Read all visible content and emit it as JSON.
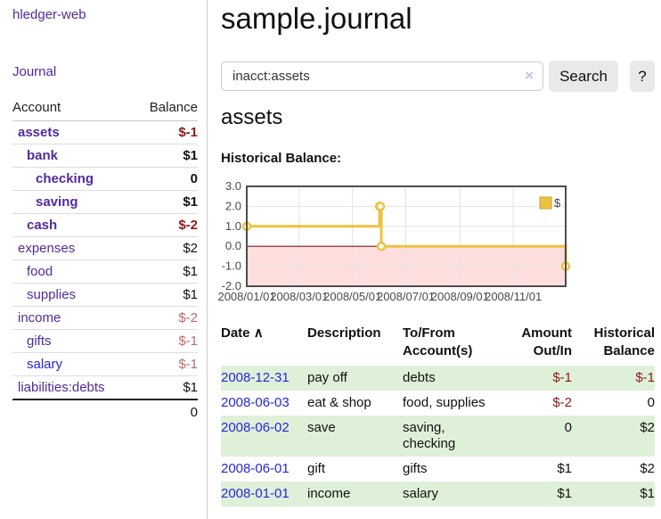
{
  "app": {
    "title": "hledger-web"
  },
  "sidebar": {
    "journal_link": "Journal",
    "headers": {
      "account": "Account",
      "balance": "Balance"
    },
    "accounts": [
      {
        "name": "assets",
        "balance": "$-1"
      },
      {
        "name": "bank",
        "balance": "$1"
      },
      {
        "name": "checking",
        "balance": "0"
      },
      {
        "name": "saving",
        "balance": "$1"
      },
      {
        "name": "cash",
        "balance": "$-2"
      },
      {
        "name": "expenses",
        "balance": "$2"
      },
      {
        "name": "food",
        "balance": "$1"
      },
      {
        "name": "supplies",
        "balance": "$1"
      },
      {
        "name": "income",
        "balance": "$-2"
      },
      {
        "name": "gifts",
        "balance": "$-1"
      },
      {
        "name": "salary",
        "balance": "$-1"
      },
      {
        "name": "liabilities:debts",
        "balance": "$1"
      }
    ],
    "total": "0"
  },
  "main": {
    "title": "sample.journal",
    "search": {
      "value": "inacct:assets",
      "clear_icon": "×",
      "button_label": "Search",
      "help_label": "?"
    },
    "account_heading": "assets",
    "section_label": "Historical Balance:"
  },
  "chart_data": {
    "type": "line",
    "style": "steps",
    "title": "Historical Balance",
    "series": [
      {
        "name": "$",
        "color": "#edc240",
        "points": [
          [
            "2008-01-01",
            1
          ],
          [
            "2008-06-01",
            2
          ],
          [
            "2008-06-02",
            2
          ],
          [
            "2008-06-03",
            0
          ],
          [
            "2008-12-31",
            -1
          ]
        ]
      }
    ],
    "x_range": [
      "2008-01-01",
      "2008-12-31"
    ],
    "x_ticks": [
      "2008/01/01",
      "2008/03/01",
      "2008/05/01",
      "2008/07/01",
      "2008/09/01",
      "2008/11/01"
    ],
    "y_ticks": [
      "3.0",
      "2.0",
      "1.0",
      "0.0",
      "-1.0",
      "-2.0"
    ],
    "ylim": [
      -2,
      3
    ],
    "grid": true,
    "legend": {
      "label": "$",
      "position": "top-right"
    },
    "negative_region_color": "#ffdede",
    "zero_line_color": "#8b1a1a"
  },
  "register": {
    "headers": {
      "date": "Date",
      "sort_indicator": "∧",
      "description": "Description",
      "accounts_line1": "To/From",
      "accounts_line2": "Account(s)",
      "amount_line1": "Amount",
      "amount_line2": "Out/In",
      "balance_line1": "Historical",
      "balance_line2": "Balance"
    },
    "rows": [
      {
        "date": "2008-12-31",
        "description": "pay off",
        "accounts": "debts",
        "amount": "$-1",
        "balance": "$-1"
      },
      {
        "date": "2008-06-03",
        "description": "eat & shop",
        "accounts": "food, supplies",
        "amount": "$-2",
        "balance": "0"
      },
      {
        "date": "2008-06-02",
        "description": "save",
        "accounts": "saving, checking",
        "amount": "0",
        "balance": "$2"
      },
      {
        "date": "2008-06-01",
        "description": "gift",
        "accounts": "gifts",
        "amount": "$1",
        "balance": "$2"
      },
      {
        "date": "2008-01-01",
        "description": "income",
        "accounts": "salary",
        "amount": "$1",
        "balance": "$1"
      }
    ]
  }
}
